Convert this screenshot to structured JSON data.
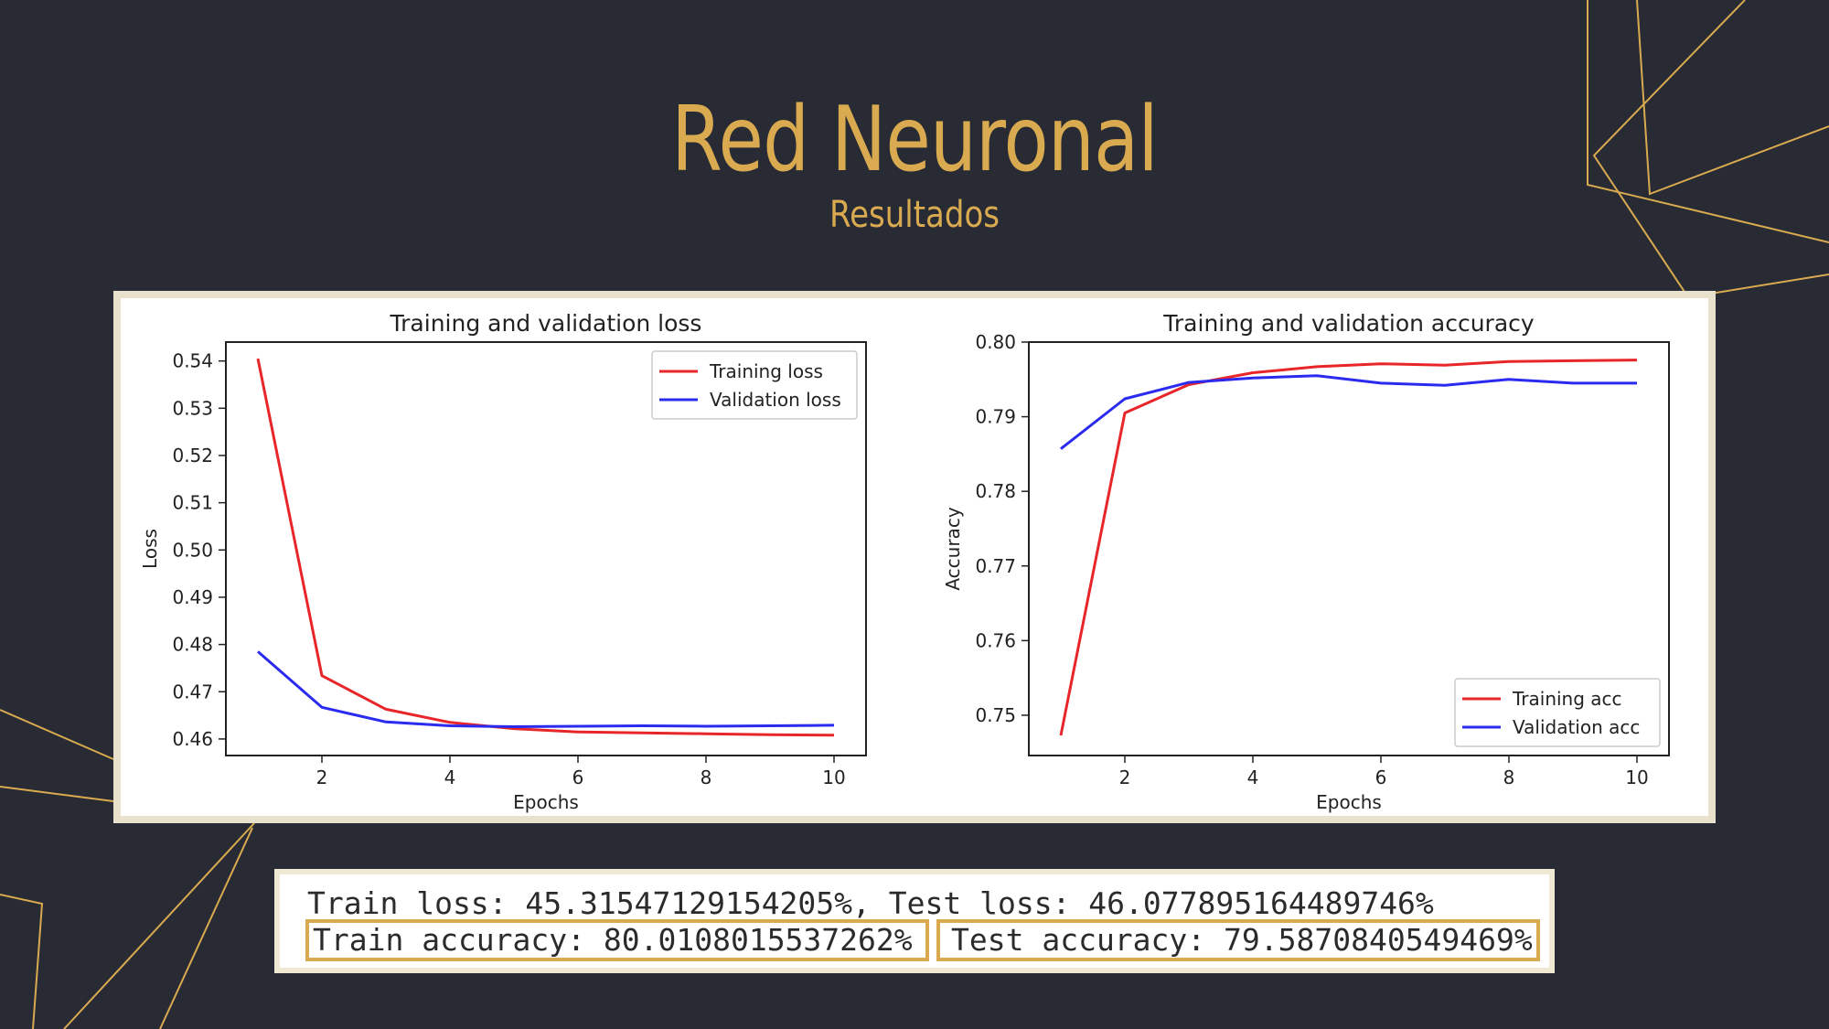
{
  "slide": {
    "title": "Red Neuronal",
    "subtitle": "Resultados",
    "colors": {
      "background": "#282b34",
      "accent": "#d9aa4f"
    }
  },
  "metrics": {
    "loss_line": "Train loss: 45.31547129154205%, Test loss: 46.077895164489746%",
    "train_accuracy": "Train accuracy: 80.0108015537262%",
    "test_accuracy": "Test accuracy: 79.5870840549469%"
  },
  "chart_data": [
    {
      "type": "line",
      "title": "Training and validation loss",
      "xlabel": "Epochs",
      "ylabel": "Loss",
      "xlim": [
        0.5,
        10.5
      ],
      "ylim": [
        0.4565,
        0.544
      ],
      "xticks": [
        2,
        4,
        6,
        8,
        10
      ],
      "yticks": [
        0.46,
        0.47,
        0.48,
        0.49,
        0.5,
        0.51,
        0.52,
        0.53,
        0.54
      ],
      "ytick_labels": [
        "0.46",
        "0.47",
        "0.48",
        "0.49",
        "0.50",
        "0.51",
        "0.52",
        "0.53",
        "0.54"
      ],
      "legend_position": "top-right",
      "x": [
        1,
        2,
        3,
        4,
        5,
        6,
        7,
        8,
        9,
        10
      ],
      "series": [
        {
          "name": "Training loss",
          "color": "#e8262a",
          "values": [
            0.5405,
            0.4734,
            0.4663,
            0.4635,
            0.4622,
            0.4615,
            0.4613,
            0.4611,
            0.4609,
            0.4608
          ]
        },
        {
          "name": "Validation loss",
          "color": "#2b2bf0",
          "values": [
            0.4785,
            0.4667,
            0.4636,
            0.4628,
            0.4626,
            0.4627,
            0.4628,
            0.4627,
            0.4628,
            0.4629
          ]
        }
      ]
    },
    {
      "type": "line",
      "title": "Training and validation accuracy",
      "xlabel": "Epochs",
      "ylabel": "Accuracy",
      "xlim": [
        0.5,
        10.5
      ],
      "ylim": [
        0.7446,
        0.8
      ],
      "xticks": [
        2,
        4,
        6,
        8,
        10
      ],
      "yticks": [
        0.75,
        0.76,
        0.77,
        0.78,
        0.79,
        0.8
      ],
      "ytick_labels": [
        "0.75",
        "0.76",
        "0.77",
        "0.78",
        "0.79",
        "0.80"
      ],
      "legend_position": "bottom-right",
      "x": [
        1,
        2,
        3,
        4,
        5,
        6,
        7,
        8,
        9,
        10
      ],
      "series": [
        {
          "name": "Training acc",
          "color": "#e8262a",
          "values": [
            0.7473,
            0.7905,
            0.7943,
            0.7959,
            0.7967,
            0.7971,
            0.7969,
            0.7974,
            0.7975,
            0.7976
          ]
        },
        {
          "name": "Validation acc",
          "color": "#2b2bf0",
          "values": [
            0.7857,
            0.7924,
            0.7946,
            0.7952,
            0.7955,
            0.7945,
            0.7942,
            0.795,
            0.7945,
            0.7945
          ]
        }
      ]
    }
  ]
}
